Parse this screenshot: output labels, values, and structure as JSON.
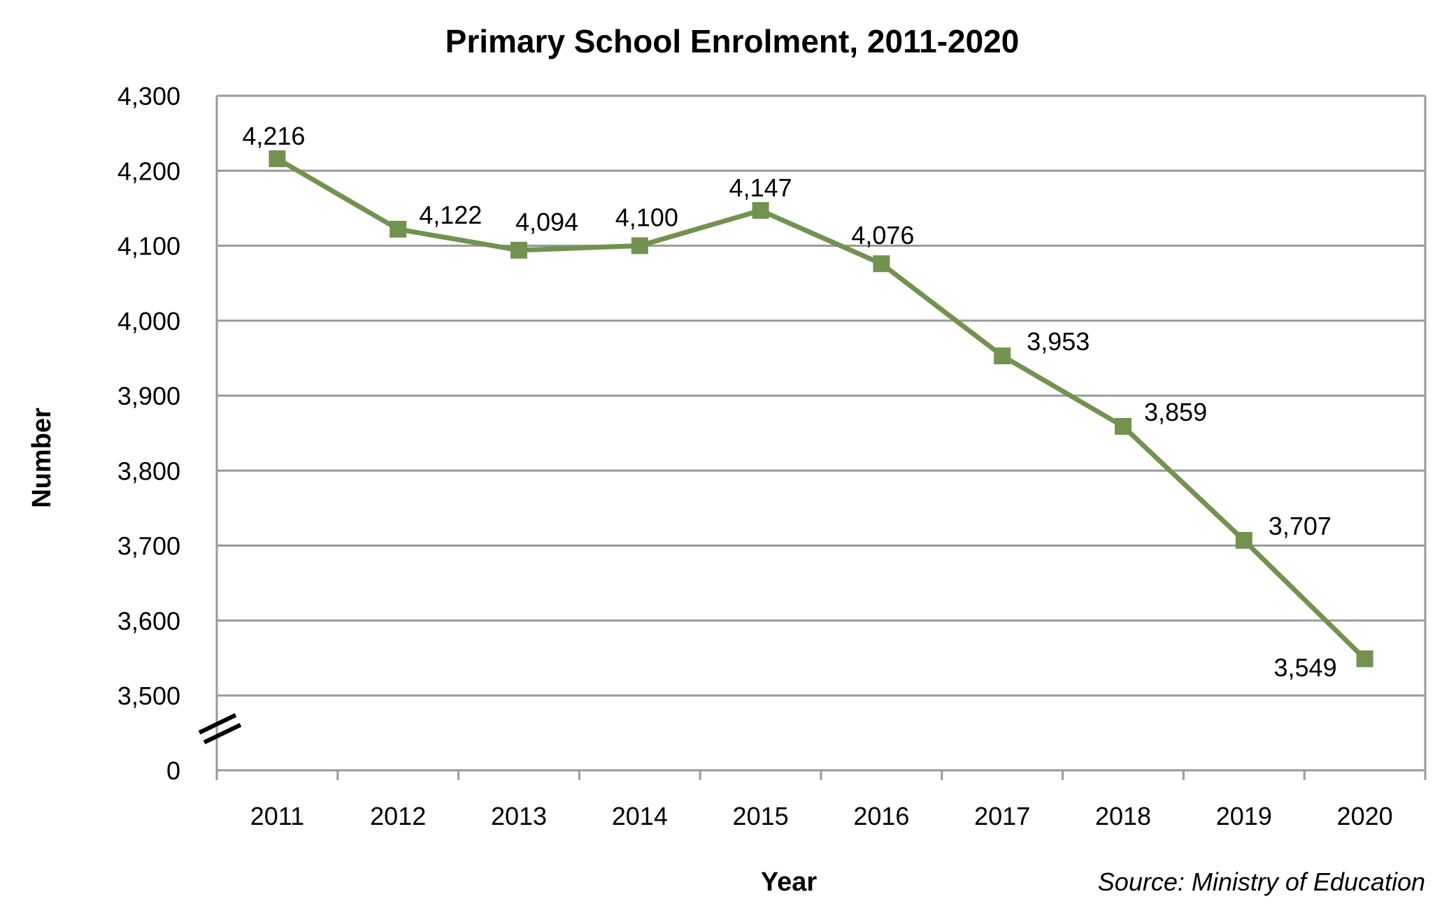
{
  "chart_data": {
    "type": "line",
    "title": "Primary School Enrolment, 2011-2020",
    "xlabel": "Year",
    "ylabel": "Number",
    "source": "Source: Ministry of Education",
    "categories": [
      "2011",
      "2012",
      "2013",
      "2014",
      "2015",
      "2016",
      "2017",
      "2018",
      "2019",
      "2020"
    ],
    "series": [
      {
        "name": "Enrolment",
        "values": [
          4216,
          4122,
          4094,
          4100,
          4147,
          4076,
          3953,
          3859,
          3707,
          3549
        ]
      }
    ],
    "data_labels": [
      "4,216",
      "4,122",
      "4,094",
      "4,100",
      "4,147",
      "4,076",
      "3,953",
      "3,859",
      "3,707",
      "3,549"
    ],
    "ylim": [
      3500,
      4300
    ],
    "y_axis_break": true,
    "yticks": [
      4300,
      4200,
      4100,
      4000,
      3900,
      3800,
      3700,
      3600,
      3500
    ],
    "ytick_labels": [
      "4,300",
      "4,200",
      "4,100",
      "4,000",
      "3,900",
      "3,800",
      "3,700",
      "3,600",
      "3,500"
    ],
    "zero_label": "0",
    "grid": true,
    "line_color": "#72924f",
    "grid_color": "#9a9a9a"
  }
}
